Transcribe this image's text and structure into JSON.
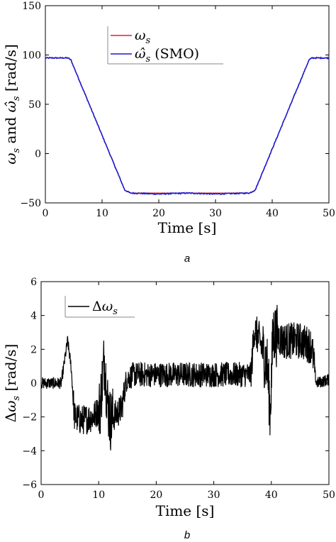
{
  "chart_data": [
    {
      "type": "line",
      "panel_label": "a",
      "xlabel": "Time [s]",
      "ylabel": "ω_s and ω̂_s [rad/s]",
      "xlim": [
        0,
        50
      ],
      "ylim": [
        -50,
        150
      ],
      "xticks": [
        "0",
        "10",
        "20",
        "30",
        "40",
        "50"
      ],
      "yticks": [
        "−50",
        "0",
        "50",
        "100",
        "150"
      ],
      "grid": false,
      "legend": "top-center",
      "series": [
        {
          "name": "ω_s",
          "color": "#e0202a",
          "x": [
            0,
            4,
            4.5,
            14,
            15,
            36,
            37,
            46.5,
            47,
            50
          ],
          "y": [
            97,
            97,
            95,
            -37,
            -40,
            -40,
            -37,
            95,
            97,
            97
          ]
        },
        {
          "name": "ω̂_s (SMO)",
          "color": "#1a1ad0",
          "x": [
            0,
            4,
            4.5,
            14,
            15,
            20,
            25,
            30,
            36,
            37,
            46.5,
            47,
            50
          ],
          "y": [
            97,
            97,
            95,
            -37,
            -40,
            -41,
            -40,
            -41,
            -40,
            -37,
            95,
            97,
            97
          ]
        }
      ]
    },
    {
      "type": "line",
      "panel_label": "b",
      "xlabel": "Time [s]",
      "ylabel": "Δω_s [rad/s]",
      "xlim": [
        0,
        50
      ],
      "ylim": [
        -6,
        6
      ],
      "xticks": [
        "0",
        "10",
        "20",
        "30",
        "40",
        "50"
      ],
      "yticks": [
        "−6",
        "−4",
        "−2",
        "0",
        "2",
        "4",
        "6"
      ],
      "grid": false,
      "legend": "top-left",
      "series": [
        {
          "name": "Δω_s",
          "color": "#000000",
          "x": [
            0,
            3.5,
            4.2,
            4.6,
            5.2,
            5.8,
            7,
            9,
            10.2,
            11,
            11.5,
            12,
            14,
            14.8,
            16,
            20,
            25,
            30,
            36.5,
            37,
            38,
            39.3,
            39.8,
            40.3,
            42,
            45,
            47,
            47.8,
            50
          ],
          "y": [
            0,
            0,
            1.6,
            2.5,
            1,
            -2,
            -2.2,
            -2,
            -1.5,
            1.5,
            -1,
            -2.2,
            -1.5,
            0.2,
            0.5,
            0.5,
            0.5,
            0.5,
            0.5,
            3.2,
            2.5,
            1,
            -1.7,
            3,
            2.5,
            2.5,
            2.2,
            0,
            0.2
          ]
        }
      ]
    }
  ]
}
